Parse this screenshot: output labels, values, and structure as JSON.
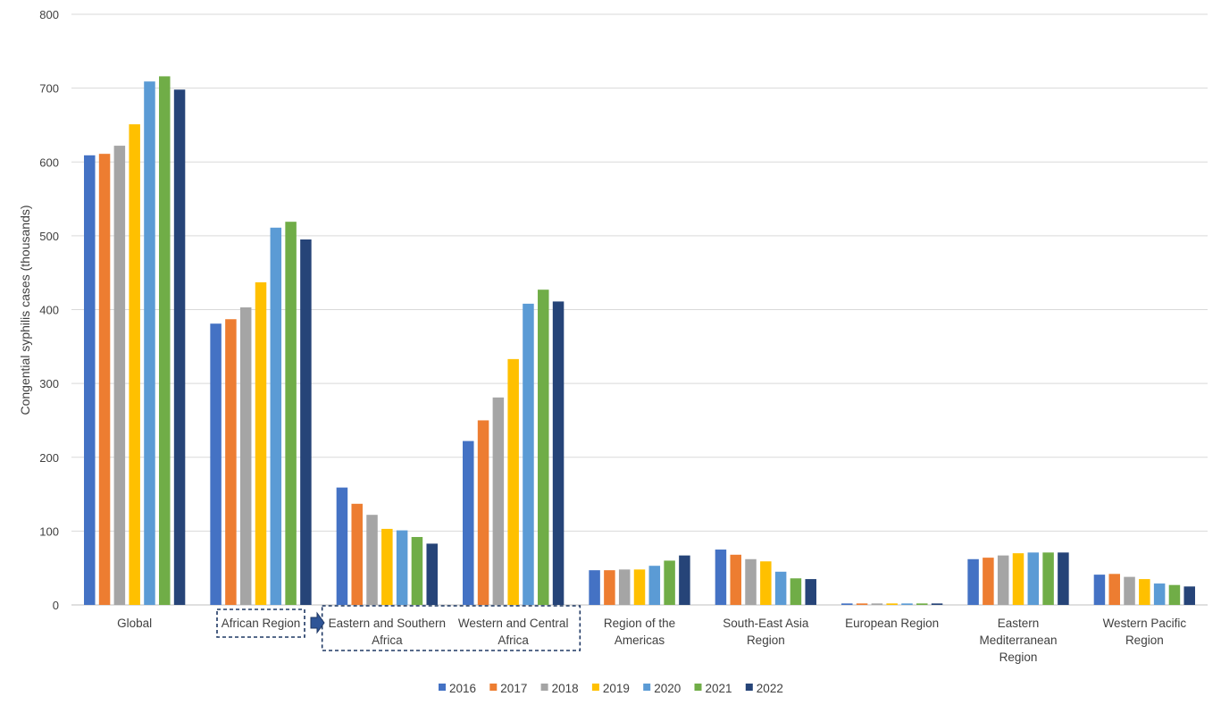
{
  "chart_data": {
    "type": "bar",
    "title": "",
    "xlabel": "",
    "ylabel": "Congential syphilis cases (thousands)",
    "ylim": [
      0,
      800
    ],
    "yticks": [
      0,
      100,
      200,
      300,
      400,
      500,
      600,
      700,
      800
    ],
    "grid": true,
    "legend_position": "bottom",
    "categories": [
      "Global",
      "African Region",
      "Eastern and Southern Africa",
      "Western and Central Africa",
      "Region of the Americas",
      "South-East Asia Region",
      "European Region",
      "Eastern Mediterranean Region",
      "Western Pacific Region"
    ],
    "category_label_lines": [
      [
        "Global"
      ],
      [
        "African Region"
      ],
      [
        "Eastern and Southern",
        "Africa"
      ],
      [
        "Western and Central",
        "Africa"
      ],
      [
        "Region of the",
        "Americas"
      ],
      [
        "South-East Asia",
        "Region"
      ],
      [
        "European Region"
      ],
      [
        "Eastern",
        "Mediterranean",
        "Region"
      ],
      [
        "Western Pacific",
        "Region"
      ]
    ],
    "series": [
      {
        "name": "2016",
        "color": "#4472C4",
        "values": [
          609,
          381,
          159,
          222,
          47,
          75,
          2,
          62,
          41
        ]
      },
      {
        "name": "2017",
        "color": "#ED7D31",
        "values": [
          611,
          387,
          137,
          250,
          47,
          68,
          2,
          64,
          42
        ]
      },
      {
        "name": "2018",
        "color": "#A5A5A5",
        "values": [
          622,
          403,
          122,
          281,
          48,
          62,
          2,
          67,
          38
        ]
      },
      {
        "name": "2019",
        "color": "#FFC000",
        "values": [
          651,
          437,
          103,
          333,
          48,
          59,
          2,
          70,
          35
        ]
      },
      {
        "name": "2020",
        "color": "#5B9BD5",
        "values": [
          709,
          511,
          101,
          408,
          53,
          45,
          2,
          71,
          29
        ]
      },
      {
        "name": "2021",
        "color": "#70AD47",
        "values": [
          716,
          519,
          92,
          427,
          60,
          36,
          2,
          71,
          27
        ]
      },
      {
        "name": "2022",
        "color": "#264478",
        "values": [
          698,
          495,
          83,
          411,
          67,
          35,
          2,
          71,
          25
        ]
      }
    ],
    "annotations": {
      "highlight_box_color": "#1F3864",
      "arrow_color": "#2F5597",
      "boxed_categories": [
        "African Region"
      ],
      "grouped_boxed_categories": [
        "Eastern and Southern Africa",
        "Western and Central Africa"
      ]
    }
  }
}
